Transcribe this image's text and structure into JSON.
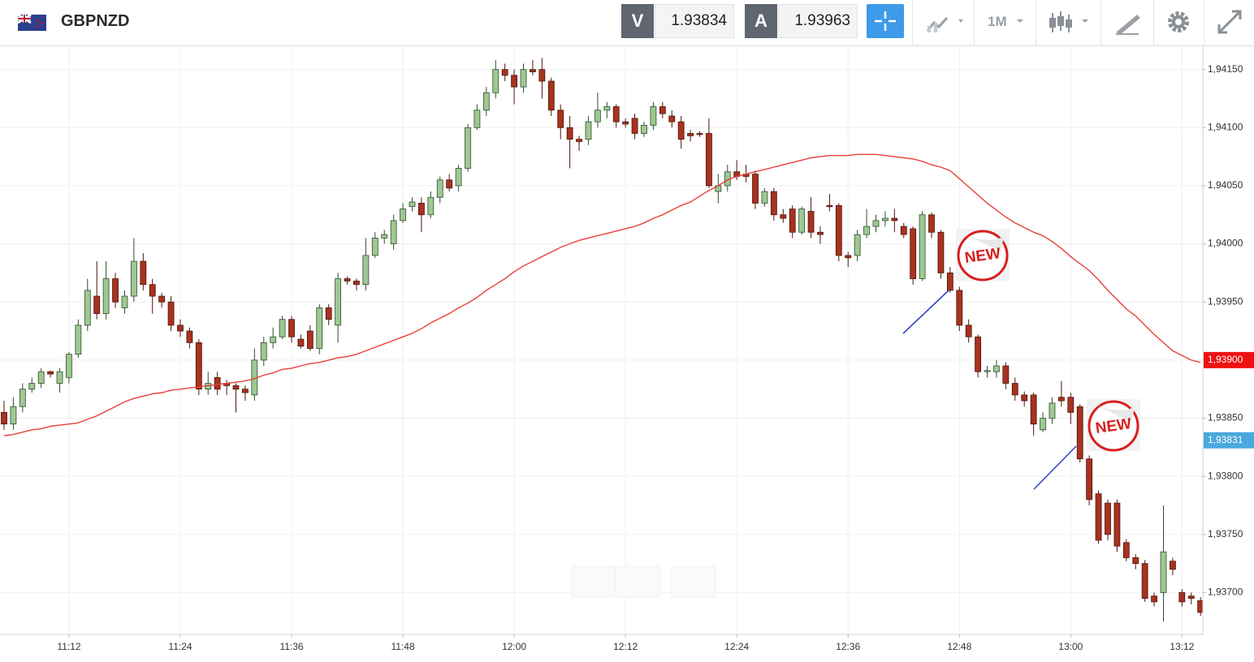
{
  "header": {
    "symbol": "GBPNZD",
    "sell_label": "V",
    "sell_price": "1.93834",
    "buy_label": "A",
    "buy_price": "1.93963",
    "timeframe": "1M"
  },
  "annotations": [
    {
      "text": "NEW"
    },
    {
      "text": "NEW"
    }
  ],
  "chart_data": {
    "type": "candlestick",
    "up_color": "#9fc794",
    "down_color": "#a8321f",
    "grid": true,
    "categories": [
      null,
      null,
      null,
      null,
      null,
      null,
      null,
      "11:12",
      null,
      null,
      null,
      null,
      null,
      null,
      null,
      null,
      null,
      null,
      null,
      "11:24",
      null,
      null,
      null,
      null,
      null,
      null,
      null,
      null,
      null,
      null,
      null,
      "11:36",
      null,
      null,
      null,
      null,
      null,
      null,
      null,
      null,
      null,
      null,
      null,
      "11:48",
      null,
      null,
      null,
      null,
      null,
      null,
      null,
      null,
      null,
      null,
      null,
      "12:00",
      null,
      null,
      null,
      null,
      null,
      null,
      null,
      null,
      null,
      null,
      null,
      "12:12",
      null,
      null,
      null,
      null,
      null,
      null,
      null,
      null,
      null,
      null,
      null,
      "12:24",
      null,
      null,
      null,
      null,
      null,
      null,
      null,
      null,
      null,
      null,
      null,
      "12:36",
      null,
      null,
      null,
      null,
      null,
      null,
      null,
      null,
      null,
      null,
      null,
      "12:48",
      null,
      null,
      null,
      null,
      null,
      null,
      null,
      null,
      null,
      null,
      null,
      "13:00",
      null,
      null,
      null,
      null,
      null,
      null,
      null,
      null,
      null,
      null,
      null,
      "13:12",
      null,
      null
    ],
    "open": [
      1.93855,
      1.93845,
      1.9386,
      1.93875,
      1.9388,
      1.9389,
      1.9388,
      1.93885,
      1.93905,
      1.9393,
      1.93955,
      1.9394,
      1.9397,
      1.93945,
      1.93955,
      1.93985,
      1.93965,
      1.93955,
      1.9395,
      1.9393,
      1.93925,
      1.93915,
      1.93875,
      1.93885,
      1.9388,
      1.93878,
      1.93875,
      1.9387,
      1.939,
      1.93915,
      1.9392,
      1.93935,
      1.93918,
      1.93925,
      1.9391,
      1.93945,
      1.9393,
      1.9397,
      1.93968,
      1.93965,
      1.9399,
      1.94005,
      1.94,
      1.9402,
      1.94032,
      1.94035,
      1.94025,
      1.9404,
      1.94055,
      1.9405,
      1.94065,
      1.941,
      1.94115,
      1.9413,
      1.9415,
      1.94145,
      1.94135,
      1.9415,
      1.9415,
      1.9414,
      1.94115,
      1.941,
      1.9409,
      1.9409,
      1.94105,
      1.94115,
      1.94118,
      1.94105,
      1.94108,
      1.94095,
      1.94102,
      1.94118,
      1.9411,
      1.94105,
      1.94095,
      1.94095,
      1.94095,
      1.94045,
      1.9405,
      1.94062,
      1.9406,
      1.9406,
      1.94035,
      1.94045,
      1.94025,
      1.9403,
      1.9401,
      1.94028,
      1.9401,
      1.94033,
      1.94033,
      1.9399,
      1.9399,
      1.94008,
      1.94015,
      1.9402,
      1.94022,
      1.94015,
      1.94013,
      1.9397,
      1.94025,
      1.9401,
      1.93975,
      1.9396,
      1.9393,
      1.9392,
      1.9389,
      1.9389,
      1.93895,
      1.9388,
      1.9387,
      1.9387,
      1.9384,
      1.9385,
      1.93868,
      1.93868,
      1.9386,
      1.93815,
      1.93785,
      1.93777,
      1.93777,
      1.93743,
      1.9373,
      1.93725,
      1.93697,
      1.937,
      1.93727,
      1.937,
      1.93697,
      1.93693
    ],
    "high": [
      1.93865,
      1.93868,
      1.9388,
      1.93885,
      1.93893,
      1.93891,
      1.93893,
      1.93907,
      1.93935,
      1.9397,
      1.93985,
      1.93985,
      1.93975,
      1.9396,
      1.94005,
      1.93992,
      1.9397,
      1.93958,
      1.93955,
      1.93935,
      1.93928,
      1.93918,
      1.9389,
      1.9389,
      1.93883,
      1.9388,
      1.93878,
      1.9391,
      1.9392,
      1.93928,
      1.93938,
      1.93938,
      1.93922,
      1.9393,
      1.93948,
      1.93948,
      1.93975,
      1.93972,
      1.9397,
      1.94005,
      1.9401,
      1.94012,
      1.94025,
      1.94035,
      1.9404,
      1.9404,
      1.94045,
      1.94058,
      1.9406,
      1.94068,
      1.94103,
      1.9412,
      1.94135,
      1.94158,
      1.94155,
      1.9415,
      1.94155,
      1.94158,
      1.9416,
      1.94143,
      1.9412,
      1.9411,
      1.94093,
      1.9411,
      1.9413,
      1.94122,
      1.9412,
      1.94108,
      1.94112,
      1.94105,
      1.94122,
      1.94122,
      1.94115,
      1.9411,
      1.94098,
      1.94097,
      1.94108,
      1.9406,
      1.94068,
      1.94072,
      1.94068,
      1.94063,
      1.94048,
      1.94048,
      1.9403,
      1.94033,
      1.94032,
      1.9404,
      1.94015,
      1.94043,
      1.94035,
      1.93993,
      1.94012,
      1.9403,
      1.94025,
      1.94028,
      1.9403,
      1.94018,
      1.94015,
      1.94028,
      1.94027,
      1.94012,
      1.9398,
      1.93963,
      1.93935,
      1.93922,
      1.93895,
      1.939,
      1.93898,
      1.93885,
      1.93873,
      1.93872,
      1.93855,
      1.93868,
      1.93882,
      1.93872,
      1.93862,
      1.93818,
      1.93788,
      1.9378,
      1.9378,
      1.93746,
      1.93733,
      1.93728,
      1.937,
      1.93775,
      1.9373,
      1.93703,
      1.937,
      1.93696
    ],
    "low": [
      1.9384,
      1.9384,
      1.93855,
      1.93872,
      1.93876,
      1.93885,
      1.93872,
      1.9388,
      1.93902,
      1.93925,
      1.93935,
      1.93935,
      1.93945,
      1.9394,
      1.9395,
      1.9396,
      1.9394,
      1.93945,
      1.93925,
      1.9392,
      1.9391,
      1.9387,
      1.9387,
      1.9387,
      1.9387,
      1.93855,
      1.93865,
      1.93865,
      1.93895,
      1.9391,
      1.93918,
      1.93915,
      1.9391,
      1.93908,
      1.93905,
      1.9393,
      1.93915,
      1.93965,
      1.9396,
      1.9396,
      1.93988,
      1.94,
      1.93995,
      1.94018,
      1.94028,
      1.9401,
      1.94022,
      1.94035,
      1.94045,
      1.94045,
      1.94062,
      1.94098,
      1.9411,
      1.94125,
      1.9414,
      1.9412,
      1.9413,
      1.94145,
      1.94125,
      1.9411,
      1.9409,
      1.94065,
      1.9408,
      1.94085,
      1.941,
      1.94108,
      1.941,
      1.941,
      1.9409,
      1.94092,
      1.94098,
      1.94108,
      1.941,
      1.94082,
      1.94088,
      1.94092,
      1.94048,
      1.94035,
      1.94045,
      1.94055,
      1.94053,
      1.9403,
      1.94032,
      1.9402,
      1.94018,
      1.94005,
      1.94008,
      1.94005,
      1.94,
      1.94028,
      1.93985,
      1.9398,
      1.93985,
      1.94005,
      1.9401,
      1.94015,
      1.9401,
      1.94005,
      1.93965,
      1.93968,
      1.94005,
      1.9397,
      1.93958,
      1.93925,
      1.93915,
      1.93885,
      1.93885,
      1.93885,
      1.93875,
      1.93865,
      1.9386,
      1.93835,
      1.93838,
      1.93845,
      1.9386,
      1.93845,
      1.93812,
      1.93775,
      1.93742,
      1.93745,
      1.93735,
      1.93727,
      1.9372,
      1.93692,
      1.93688,
      1.93675,
      1.93715,
      1.93688,
      1.9369,
      1.9368
    ],
    "close": [
      1.93845,
      1.9386,
      1.93875,
      1.9388,
      1.9389,
      1.93888,
      1.9389,
      1.93905,
      1.9393,
      1.9396,
      1.9394,
      1.9397,
      1.9395,
      1.93955,
      1.93985,
      1.93965,
      1.93955,
      1.9395,
      1.9393,
      1.93925,
      1.93915,
      1.93875,
      1.9388,
      1.93875,
      1.93878,
      1.93875,
      1.93872,
      1.939,
      1.93915,
      1.9392,
      1.93935,
      1.9392,
      1.93912,
      1.9391,
      1.93945,
      1.93935,
      1.9397,
      1.93968,
      1.93965,
      1.9399,
      1.94005,
      1.94008,
      1.9402,
      1.9403,
      1.94036,
      1.94025,
      1.9404,
      1.94055,
      1.94048,
      1.94065,
      1.941,
      1.94115,
      1.9413,
      1.9415,
      1.94145,
      1.94135,
      1.9415,
      1.94148,
      1.9414,
      1.94115,
      1.941,
      1.9409,
      1.94088,
      1.94105,
      1.94115,
      1.94118,
      1.94105,
      1.94103,
      1.94095,
      1.94102,
      1.94118,
      1.94112,
      1.94105,
      1.9409,
      1.94093,
      1.94094,
      1.9405,
      1.9405,
      1.94062,
      1.94058,
      1.94058,
      1.94035,
      1.94045,
      1.94025,
      1.94022,
      1.9401,
      1.9403,
      1.9401,
      1.94008,
      1.94032,
      1.9399,
      1.93988,
      1.94008,
      1.94015,
      1.9402,
      1.94022,
      1.9402,
      1.94008,
      1.9397,
      1.94025,
      1.9401,
      1.93975,
      1.9396,
      1.9393,
      1.9392,
      1.9389,
      1.93891,
      1.93895,
      1.9388,
      1.9387,
      1.93865,
      1.93845,
      1.9385,
      1.93863,
      1.93865,
      1.93855,
      1.93815,
      1.9378,
      1.93745,
      1.9375,
      1.9374,
      1.9373,
      1.93725,
      1.93695,
      1.93692,
      1.93735,
      1.9372,
      1.93692,
      1.93695,
      1.93683
    ],
    "overlay": {
      "color": "#e8403a",
      "values": [
        1.93835,
        1.93836,
        1.93838,
        1.9384,
        1.93841,
        1.93843,
        1.93844,
        1.93845,
        1.93846,
        1.93849,
        1.93852,
        1.93856,
        1.9386,
        1.93864,
        1.93867,
        1.93869,
        1.93871,
        1.93872,
        1.93874,
        1.93875,
        1.93876,
        1.93877,
        1.93878,
        1.93879,
        1.9388,
        1.93881,
        1.93882,
        1.93884,
        1.93887,
        1.93889,
        1.93892,
        1.93893,
        1.93895,
        1.93897,
        1.93898,
        1.939,
        1.93902,
        1.93903,
        1.93905,
        1.93908,
        1.93911,
        1.93914,
        1.93917,
        1.9392,
        1.93923,
        1.93927,
        1.93932,
        1.93936,
        1.9394,
        1.93945,
        1.93949,
        1.93954,
        1.9396,
        1.93965,
        1.9397,
        1.93976,
        1.93981,
        1.93985,
        1.93989,
        1.93993,
        1.93997,
        1.94,
        1.94003,
        1.94005,
        1.94007,
        1.94009,
        1.94011,
        1.94013,
        1.94015,
        1.94018,
        1.94022,
        1.94025,
        1.94029,
        1.94033,
        1.94036,
        1.94041,
        1.94046,
        1.9405,
        1.94055,
        1.94058,
        1.9406,
        1.94062,
        1.94064,
        1.94066,
        1.94068,
        1.9407,
        1.94072,
        1.94074,
        1.94075,
        1.94076,
        1.94076,
        1.94076,
        1.94077,
        1.94077,
        1.94077,
        1.94076,
        1.94075,
        1.94074,
        1.94073,
        1.94071,
        1.94068,
        1.94066,
        1.94063,
        1.94056,
        1.94049,
        1.94042,
        1.94035,
        1.94029,
        1.94023,
        1.94018,
        1.94014,
        1.9401,
        1.94007,
        1.94002,
        1.93996,
        1.93989,
        1.93983,
        1.93977,
        1.93969,
        1.9396,
        1.93952,
        1.93944,
        1.93938,
        1.9393,
        1.93922,
        1.93915,
        1.93908,
        1.93904,
        1.939,
        1.93898
      ]
    },
    "ylim": [
      1.93664,
      1.9417
    ],
    "yticks": [
      {
        "value": 1.937,
        "label": "1,93700"
      },
      {
        "value": 1.9375,
        "label": "1,93750"
      },
      {
        "value": 1.938,
        "label": "1,93800"
      },
      {
        "value": 1.9385,
        "label": "1,93850"
      },
      {
        "value": 1.939,
        "label": "1,93900"
      },
      {
        "value": 1.9395,
        "label": "1,93950"
      },
      {
        "value": 1.94,
        "label": "1,94000"
      },
      {
        "value": 1.9405,
        "label": "1,94050"
      },
      {
        "value": 1.941,
        "label": "1,94100"
      },
      {
        "value": 1.9415,
        "label": "1,94150"
      }
    ],
    "price_markers": [
      {
        "value": 1.939,
        "label": "1,93900",
        "color": "#ee1111"
      },
      {
        "value": 1.93831,
        "label": "1,93831",
        "color": "#4aa8dc"
      }
    ]
  }
}
